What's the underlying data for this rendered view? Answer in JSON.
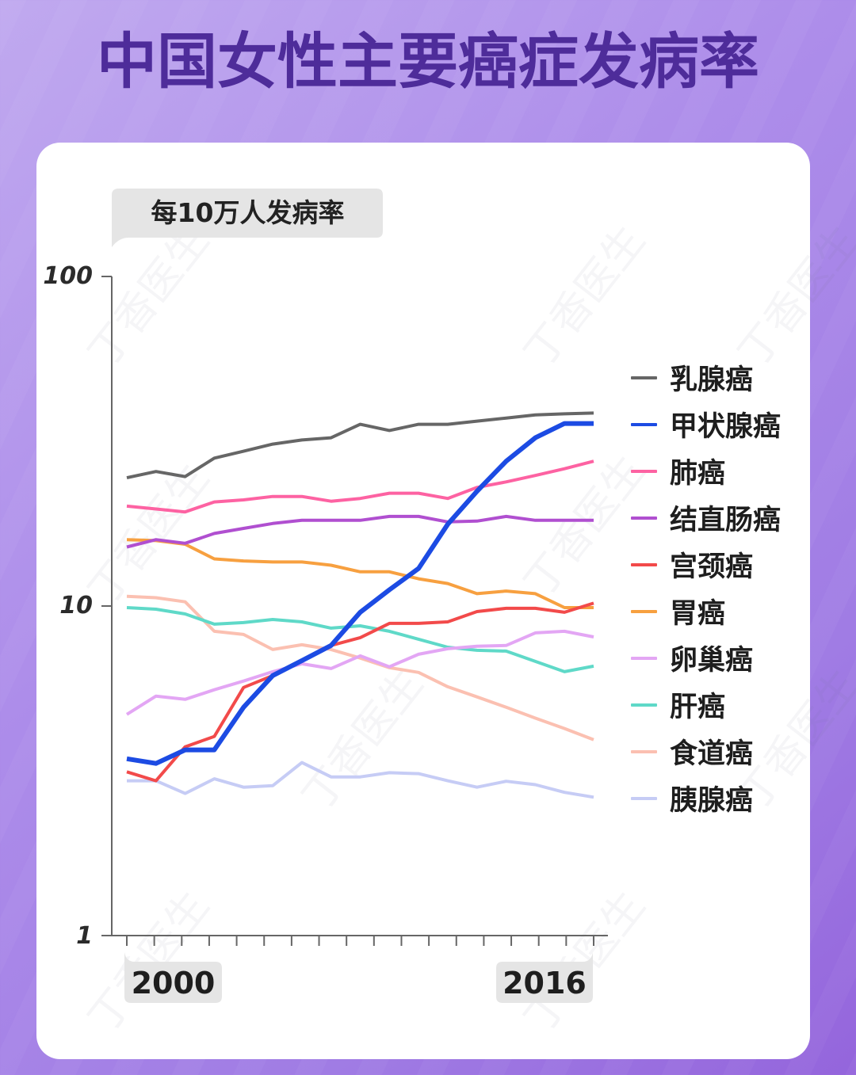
{
  "title": "中国女性主要癌症发病率",
  "watermark_text": "丁香医生",
  "chart_data": {
    "type": "line",
    "title": "中国女性主要癌症发病率",
    "xlabel": "",
    "ylabel": "每10万人发病率",
    "yscale": "log",
    "ylim": [
      1,
      100
    ],
    "y_tick_labels": [
      "100",
      "10",
      "1"
    ],
    "y_tick_values": [
      100,
      10,
      1
    ],
    "x": [
      2000,
      2001,
      2002,
      2003,
      2004,
      2005,
      2006,
      2007,
      2008,
      2009,
      2010,
      2011,
      2012,
      2013,
      2014,
      2015,
      2016
    ],
    "x_tick_labels": [
      "2000",
      "2016"
    ],
    "x_tick_count": 18,
    "grid": false,
    "legend_position": "right",
    "series": [
      {
        "name": "乳腺癌",
        "color": "#666666",
        "values": [
          24.5,
          25.6,
          24.7,
          28.1,
          29.5,
          31.0,
          31.9,
          32.4,
          35.6,
          34.1,
          35.6,
          35.6,
          36.4,
          37.2,
          38.0,
          38.3,
          38.5
        ]
      },
      {
        "name": "甲状腺癌",
        "color": "#1c4be3",
        "highlight": true,
        "values": [
          3.44,
          3.33,
          3.66,
          3.66,
          4.93,
          6.15,
          6.83,
          7.59,
          9.57,
          11.2,
          13.0,
          17.7,
          22.3,
          27.5,
          32.4,
          35.8,
          35.8
        ]
      },
      {
        "name": "肺癌",
        "color": "#fd62a2",
        "values": [
          20.1,
          19.7,
          19.3,
          20.7,
          21.0,
          21.5,
          21.5,
          20.8,
          21.2,
          22.0,
          22.0,
          21.2,
          22.9,
          23.8,
          24.9,
          26.1,
          27.5
        ]
      },
      {
        "name": "结直肠癌",
        "color": "#b04fd0",
        "values": [
          15.1,
          15.9,
          15.5,
          16.6,
          17.2,
          17.8,
          18.2,
          18.2,
          18.2,
          18.7,
          18.7,
          18.0,
          18.1,
          18.7,
          18.2,
          18.2,
          18.2
        ]
      },
      {
        "name": "宫颈癌",
        "color": "#f24a4a",
        "values": [
          3.14,
          2.95,
          3.74,
          4.02,
          5.66,
          6.15,
          6.83,
          7.59,
          8.02,
          8.86,
          8.86,
          8.95,
          9.62,
          9.84,
          9.84,
          9.57,
          10.2
        ]
      },
      {
        "name": "胃癌",
        "color": "#f7a040",
        "values": [
          15.9,
          15.8,
          15.4,
          13.9,
          13.7,
          13.6,
          13.6,
          13.3,
          12.7,
          12.7,
          12.1,
          11.7,
          10.9,
          11.1,
          10.9,
          9.89,
          9.89
        ]
      },
      {
        "name": "卵巢癌",
        "color": "#e3a6f4",
        "values": [
          4.69,
          5.33,
          5.21,
          5.57,
          5.92,
          6.32,
          6.68,
          6.46,
          7.06,
          6.54,
          7.14,
          7.42,
          7.55,
          7.59,
          8.29,
          8.38,
          8.06
        ]
      },
      {
        "name": "肝癌",
        "color": "#5fd9c8",
        "values": [
          9.89,
          9.78,
          9.46,
          8.81,
          8.91,
          9.1,
          8.95,
          8.57,
          8.71,
          8.38,
          7.93,
          7.5,
          7.34,
          7.3,
          6.79,
          6.32,
          6.57
        ]
      },
      {
        "name": "食道癌",
        "color": "#fbc0b1",
        "values": [
          10.7,
          10.6,
          10.3,
          8.38,
          8.2,
          7.38,
          7.63,
          7.38,
          6.95,
          6.5,
          6.29,
          5.69,
          5.3,
          4.93,
          4.57,
          4.25,
          3.93
        ]
      },
      {
        "name": "胰腺癌",
        "color": "#c6ccf5",
        "values": [
          2.95,
          2.95,
          2.7,
          2.99,
          2.82,
          2.85,
          3.35,
          3.03,
          3.03,
          3.12,
          3.1,
          2.95,
          2.82,
          2.94,
          2.87,
          2.72,
          2.63
        ]
      }
    ]
  }
}
